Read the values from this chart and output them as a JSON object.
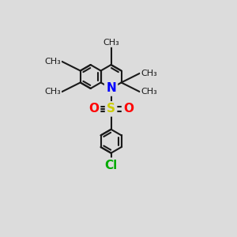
{
  "bg_color": "#dcdcdc",
  "bond_color": "#1a1a1a",
  "bond_width": 1.5,
  "N_color": "#0000ff",
  "S_color": "#cccc00",
  "O_color": "#ff0000",
  "Cl_color": "#00aa00",
  "font_size_atom": 10,
  "xlim": [
    0,
    10
  ],
  "ylim": [
    0,
    10
  ]
}
